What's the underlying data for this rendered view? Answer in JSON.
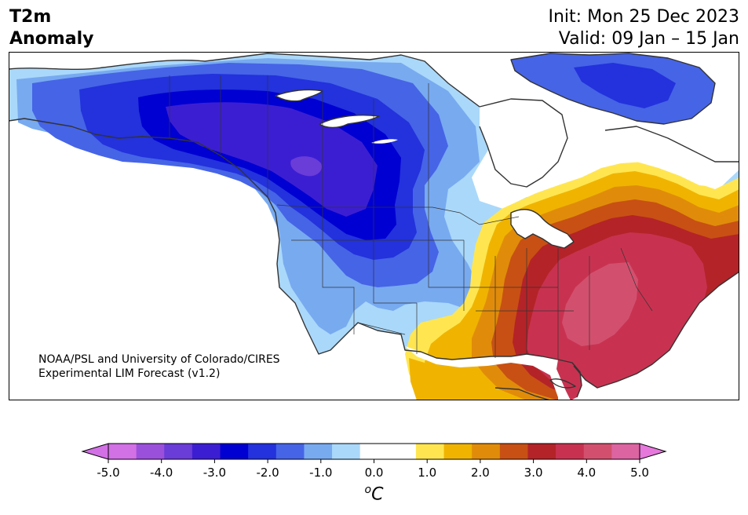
{
  "header": {
    "variable": "T2m",
    "subtitle": "Anomaly",
    "init": "Init: Mon 25 Dec 2023",
    "valid": "Valid: 09 Jan – 15 Jan"
  },
  "credit": {
    "line1": "NOAA/PSL and University of Colorado/CIRES",
    "line2": "Experimental LIM Forecast (v1.2)"
  },
  "colorbar": {
    "unit_base": "C",
    "unit_sup": "o",
    "ticks": [
      "-5.0",
      "-4.0",
      "-3.0",
      "-2.0",
      "-1.0",
      "0.0",
      "1.0",
      "2.0",
      "3.0",
      "4.0",
      "5.0"
    ],
    "colors": [
      "#d270e6",
      "#9b50dc",
      "#6a3cd8",
      "#3c1ed2",
      "#0000d2",
      "#2332dc",
      "#4664e6",
      "#78aaf0",
      "#aad8fa",
      "#ffffff",
      "#ffffff",
      "#ffe650",
      "#f0b400",
      "#e08c0a",
      "#c85014",
      "#b42328",
      "#c83250",
      "#d2506e",
      "#dc64a0"
    ],
    "under_color": "#d270e6",
    "over_color": "#e678dc"
  },
  "map": {
    "colors": {
      "ocean": "#ffffff",
      "c1": "#aad8fa",
      "c2": "#78aaf0",
      "c3": "#4664e6",
      "c4": "#2332dc",
      "c5": "#0000d2",
      "c6": "#3c1ed2",
      "c7": "#6a3cd8",
      "w1": "#ffe650",
      "w2": "#f0b400",
      "w3": "#e08c0a",
      "w4": "#c85014",
      "w5": "#b42328",
      "w6": "#c83250",
      "w7": "#d2506e"
    }
  }
}
